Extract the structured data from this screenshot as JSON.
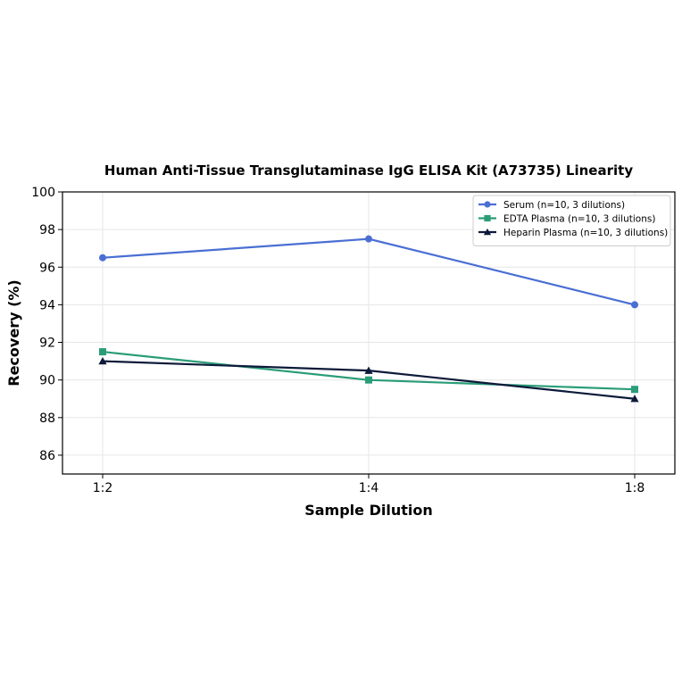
{
  "chart_data": {
    "type": "line",
    "title": "Human Anti-Tissue Transglutaminase IgG ELISA Kit (A73735) Linearity",
    "xlabel": "Sample Dilution",
    "ylabel": "Recovery (%)",
    "categories": [
      "1:2",
      "1:4",
      "1:8"
    ],
    "ylim": [
      85,
      100
    ],
    "yticks": [
      86,
      88,
      90,
      92,
      94,
      96,
      98,
      100
    ],
    "grid": true,
    "legend_position": "top-right",
    "series": [
      {
        "name": "Serum (n=10, 3 dilutions)",
        "values": [
          96.5,
          97.5,
          94.0
        ],
        "color": "#4a6fd4",
        "marker": "circle"
      },
      {
        "name": "EDTA Plasma (n=10, 3 dilutions)",
        "values": [
          91.5,
          90.0,
          89.5
        ],
        "color": "#2a9d78",
        "marker": "square"
      },
      {
        "name": "Heparin Plasma (n=10, 3 dilutions)",
        "values": [
          91.0,
          90.5,
          89.0
        ],
        "color": "#0d1a3a",
        "marker": "triangle"
      }
    ]
  }
}
